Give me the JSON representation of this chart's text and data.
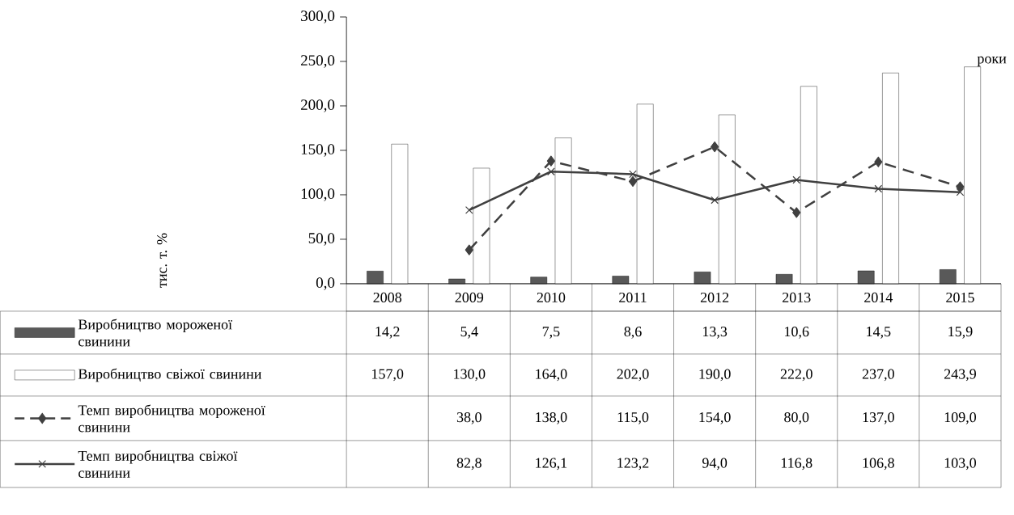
{
  "chart_data": {
    "type": "bar",
    "categories": [
      "2008",
      "2009",
      "2010",
      "2011",
      "2012",
      "2013",
      "2014",
      "2015"
    ],
    "annotations": [
      "тис. т. %"
    ],
    "xlabel": "роки",
    "legend": "bottom",
    "ylim": [
      0,
      300
    ],
    "yticks": [
      {
        "value": 0,
        "label": "0,0"
      },
      {
        "value": 50,
        "label": "50,0"
      },
      {
        "value": 100,
        "label": "100,0"
      },
      {
        "value": 150,
        "label": "150,0"
      },
      {
        "value": 200,
        "label": "200,0"
      },
      {
        "value": 250,
        "label": "250,0"
      },
      {
        "value": 300,
        "label": "300,0"
      }
    ],
    "series": [
      {
        "name": "Виробництво мороженої свинини",
        "color": "#595959",
        "values": [
          14.2,
          5.4,
          7.5,
          8.6,
          13.3,
          10.6,
          14.5,
          15.9
        ],
        "value_labels": [
          "14,2",
          "5,4",
          "7,5",
          "8,6",
          "13,3",
          "10,6",
          "14,5",
          "15,9"
        ]
      },
      {
        "name": "Виробництво свіжої свинини",
        "color": "#ffffff",
        "values": [
          157.0,
          130.0,
          164.0,
          202.0,
          190.0,
          222.0,
          237.0,
          243.9
        ],
        "value_labels": [
          "157,0",
          "130,0",
          "164,0",
          "202,0",
          "190,0",
          "222,0",
          "237,0",
          "243,9"
        ]
      },
      {
        "name": "Темп виробництва мороженої свинини",
        "type": "line",
        "color": "#404040",
        "marker": "diamond",
        "line_style": "dashed",
        "values": [
          null,
          38.0,
          138.0,
          115.0,
          154.0,
          80.0,
          137.0,
          109.0
        ],
        "value_labels": [
          null,
          "38,0",
          "138,0",
          "115,0",
          "154,0",
          "80,0",
          "137,0",
          "109,0"
        ]
      },
      {
        "name": "Темп виробництва свіжої свинини",
        "type": "line",
        "color": "#404040",
        "marker": "cross",
        "line_style": "solid",
        "values": [
          null,
          82.8,
          126.1,
          123.2,
          94.0,
          116.8,
          106.8,
          103.0
        ],
        "value_labels": [
          null,
          "82,8",
          "126,1",
          "123,2",
          "94,0",
          "116,8",
          "106,8",
          "103,0"
        ]
      }
    ]
  }
}
